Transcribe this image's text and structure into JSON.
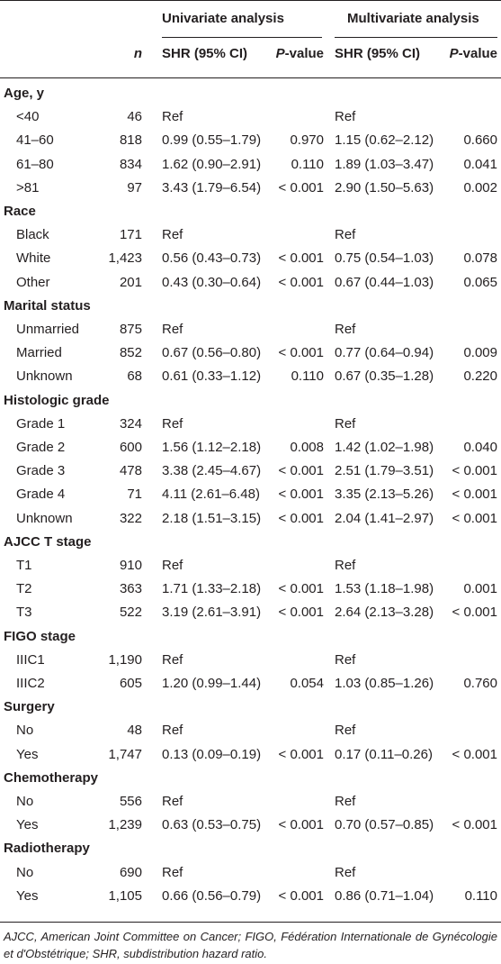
{
  "header": {
    "group_univariate": "Univariate analysis",
    "group_multivariate": "Multivariate analysis",
    "n": "n",
    "shr_uni": "SHR (95% CI)",
    "p_uni": "P-value",
    "shr_multi": "SHR (95% CI)",
    "p_multi": "P-value"
  },
  "rows": [
    {
      "type": "section",
      "label": "Age, y"
    },
    {
      "type": "data",
      "label": "<40",
      "n": "46",
      "u_shr": "Ref",
      "u_p": "",
      "m_shr": "Ref",
      "m_p": ""
    },
    {
      "type": "data",
      "label": "41–60",
      "n": "818",
      "u_shr": "0.99 (0.55–1.79)",
      "u_p": "0.970",
      "m_shr": "1.15 (0.62–2.12)",
      "m_p": "0.660"
    },
    {
      "type": "data",
      "label": "61–80",
      "n": "834",
      "u_shr": "1.62 (0.90–2.91)",
      "u_p": "0.110",
      "m_shr": "1.89 (1.03–3.47)",
      "m_p": "0.041"
    },
    {
      "type": "data",
      "label": ">81",
      "n": "97",
      "u_shr": "3.43 (1.79–6.54)",
      "u_p": "< 0.001",
      "m_shr": "2.90 (1.50–5.63)",
      "m_p": "0.002"
    },
    {
      "type": "section",
      "label": "Race"
    },
    {
      "type": "data",
      "label": "Black",
      "n": "171",
      "u_shr": "Ref",
      "u_p": "",
      "m_shr": "Ref",
      "m_p": ""
    },
    {
      "type": "data",
      "label": "White",
      "n": "1,423",
      "u_shr": "0.56 (0.43–0.73)",
      "u_p": "< 0.001",
      "m_shr": "0.75 (0.54–1.03)",
      "m_p": "0.078"
    },
    {
      "type": "data",
      "label": "Other",
      "n": "201",
      "u_shr": "0.43 (0.30–0.64)",
      "u_p": "< 0.001",
      "m_shr": "0.67 (0.44–1.03)",
      "m_p": "0.065"
    },
    {
      "type": "section",
      "label": "Marital status"
    },
    {
      "type": "data",
      "label": "Unmarried",
      "n": "875",
      "u_shr": "Ref",
      "u_p": "",
      "m_shr": "Ref",
      "m_p": ""
    },
    {
      "type": "data",
      "label": "Married",
      "n": "852",
      "u_shr": "0.67 (0.56–0.80)",
      "u_p": "< 0.001",
      "m_shr": "0.77 (0.64–0.94)",
      "m_p": "0.009"
    },
    {
      "type": "data",
      "label": "Unknown",
      "n": "68",
      "u_shr": "0.61 (0.33–1.12)",
      "u_p": "0.110",
      "m_shr": "0.67 (0.35–1.28)",
      "m_p": "0.220"
    },
    {
      "type": "section",
      "label": "Histologic grade"
    },
    {
      "type": "data",
      "label": "Grade 1",
      "n": "324",
      "u_shr": "Ref",
      "u_p": "",
      "m_shr": "Ref",
      "m_p": ""
    },
    {
      "type": "data",
      "label": "Grade 2",
      "n": "600",
      "u_shr": "1.56 (1.12–2.18)",
      "u_p": "0.008",
      "m_shr": "1.42 (1.02–1.98)",
      "m_p": "0.040"
    },
    {
      "type": "data",
      "label": "Grade 3",
      "n": "478",
      "u_shr": "3.38 (2.45–4.67)",
      "u_p": "< 0.001",
      "m_shr": "2.51 (1.79–3.51)",
      "m_p": "< 0.001"
    },
    {
      "type": "data",
      "label": "Grade 4",
      "n": "71",
      "u_shr": "4.11 (2.61–6.48)",
      "u_p": "< 0.001",
      "m_shr": "3.35 (2.13–5.26)",
      "m_p": "< 0.001"
    },
    {
      "type": "data",
      "label": "Unknown",
      "n": "322",
      "u_shr": "2.18 (1.51–3.15)",
      "u_p": "< 0.001",
      "m_shr": "2.04 (1.41–2.97)",
      "m_p": "< 0.001"
    },
    {
      "type": "section",
      "label": "AJCC T stage"
    },
    {
      "type": "data",
      "label": "T1",
      "n": "910",
      "u_shr": "Ref",
      "u_p": "",
      "m_shr": "Ref",
      "m_p": ""
    },
    {
      "type": "data",
      "label": "T2",
      "n": "363",
      "u_shr": "1.71 (1.33–2.18)",
      "u_p": "< 0.001",
      "m_shr": "1.53 (1.18–1.98)",
      "m_p": "0.001"
    },
    {
      "type": "data",
      "label": "T3",
      "n": "522",
      "u_shr": "3.19 (2.61–3.91)",
      "u_p": "< 0.001",
      "m_shr": "2.64 (2.13–3.28)",
      "m_p": "< 0.001"
    },
    {
      "type": "section",
      "label": "FIGO stage"
    },
    {
      "type": "data",
      "label": "IIIC1",
      "n": "1,190",
      "u_shr": "Ref",
      "u_p": "",
      "m_shr": "Ref",
      "m_p": ""
    },
    {
      "type": "data",
      "label": "IIIC2",
      "n": "605",
      "u_shr": "1.20 (0.99–1.44)",
      "u_p": "0.054",
      "m_shr": "1.03 (0.85–1.26)",
      "m_p": "0.760"
    },
    {
      "type": "section",
      "label": "Surgery"
    },
    {
      "type": "data",
      "label": "No",
      "n": "48",
      "u_shr": "Ref",
      "u_p": "",
      "m_shr": "Ref",
      "m_p": ""
    },
    {
      "type": "data",
      "label": "Yes",
      "n": "1,747",
      "u_shr": "0.13 (0.09–0.19)",
      "u_p": "< 0.001",
      "m_shr": "0.17 (0.11–0.26)",
      "m_p": "< 0.001"
    },
    {
      "type": "section",
      "label": "Chemotherapy"
    },
    {
      "type": "data",
      "label": "No",
      "n": "556",
      "u_shr": "Ref",
      "u_p": "",
      "m_shr": "Ref",
      "m_p": ""
    },
    {
      "type": "data",
      "label": "Yes",
      "n": "1,239",
      "u_shr": "0.63 (0.53–0.75)",
      "u_p": "< 0.001",
      "m_shr": "0.70 (0.57–0.85)",
      "m_p": "< 0.001"
    },
    {
      "type": "section",
      "label": "Radiotherapy"
    },
    {
      "type": "data",
      "label": "No",
      "n": "690",
      "u_shr": "Ref",
      "u_p": "",
      "m_shr": "Ref",
      "m_p": ""
    },
    {
      "type": "data",
      "label": "Yes",
      "n": "1,105",
      "u_shr": "0.66 (0.56–0.79)",
      "u_p": "< 0.001",
      "m_shr": "0.86 (0.71–1.04)",
      "m_p": "0.110"
    }
  ],
  "footnote": "AJCC, American Joint Committee on Cancer; FIGO, Fédération Internationale de Gynécologie et d'Obstétrique; SHR, subdistribution hazard ratio."
}
